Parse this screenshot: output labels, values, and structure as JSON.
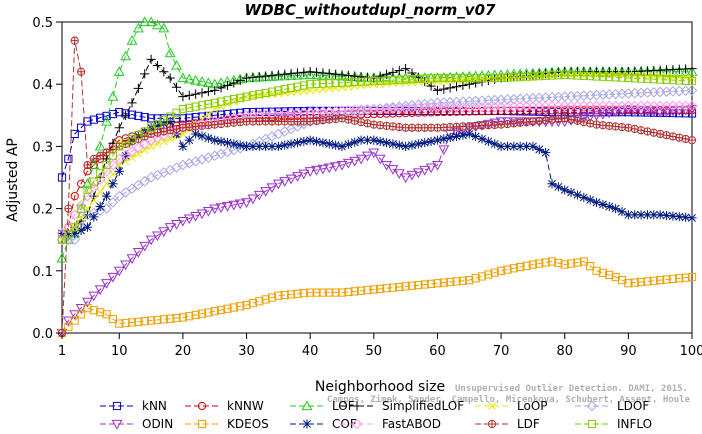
{
  "chart_data": {
    "type": "line",
    "title": "WDBC_withoutdupl_norm_v07",
    "xlabel": "Neighborhood size",
    "ylabel": "Adjusted AP",
    "xlim": [
      1,
      100
    ],
    "ylim": [
      0,
      0.5
    ],
    "xticks": [
      1,
      10,
      20,
      30,
      40,
      50,
      60,
      70,
      80,
      90,
      100
    ],
    "yticks": [
      0.0,
      0.1,
      0.2,
      0.3,
      0.4,
      0.5
    ],
    "grid": false,
    "legend_position": "bottom",
    "watermark": "Campos, Zimek, Sander, Campello, Micenkova, Schubert, Assent, Houle",
    "watermark_line1": "Unsupervised Outlier Detection. DAMI, 2015.",
    "x_sample": [
      1,
      2,
      3,
      4,
      5,
      7,
      10,
      12,
      15,
      17,
      20,
      25,
      30,
      35,
      40,
      45,
      50,
      55,
      60,
      65,
      70,
      75,
      78,
      80,
      85,
      90,
      95,
      100
    ],
    "series": [
      {
        "name": "kNN",
        "color": "#0000cc",
        "marker": "square",
        "dash": "6,3",
        "x": [
          1,
          2,
          3,
          5,
          10,
          15,
          20,
          30,
          40,
          50,
          60,
          70,
          80,
          90,
          100
        ],
        "values": [
          0.25,
          0.28,
          0.32,
          0.34,
          0.355,
          0.345,
          0.345,
          0.355,
          0.357,
          0.357,
          0.357,
          0.357,
          0.355,
          0.355,
          0.353
        ]
      },
      {
        "name": "kNNW",
        "color": "#dd0000",
        "marker": "circle",
        "dash": "6,3",
        "x": [
          1,
          2,
          3,
          5,
          8,
          10,
          15,
          20,
          30,
          40,
          50,
          60,
          70,
          80,
          90,
          100
        ],
        "values": [
          0.16,
          0.17,
          0.22,
          0.26,
          0.29,
          0.31,
          0.325,
          0.335,
          0.345,
          0.35,
          0.352,
          0.355,
          0.357,
          0.358,
          0.358,
          0.358
        ]
      },
      {
        "name": "LOF",
        "color": "#22cc22",
        "marker": "triangle",
        "dash": "6,3",
        "x": [
          1,
          2,
          3,
          5,
          7,
          10,
          12,
          13,
          14,
          15,
          17,
          18,
          20,
          25,
          30,
          40,
          50,
          60,
          70,
          80,
          90,
          100
        ],
        "values": [
          0.12,
          0.15,
          0.16,
          0.24,
          0.3,
          0.42,
          0.47,
          0.49,
          0.5,
          0.5,
          0.49,
          0.45,
          0.41,
          0.4,
          0.41,
          0.415,
          0.41,
          0.41,
          0.415,
          0.42,
          0.42,
          0.42
        ]
      },
      {
        "name": "SimplifiedLOF",
        "color": "#000000",
        "marker": "plus",
        "dash": "6,3",
        "x": [
          1,
          2,
          3,
          5,
          8,
          10,
          12,
          15,
          18,
          20,
          25,
          30,
          40,
          50,
          55,
          60,
          65,
          70,
          80,
          90,
          100
        ],
        "values": [
          0.16,
          0.16,
          0.17,
          0.19,
          0.28,
          0.33,
          0.37,
          0.44,
          0.41,
          0.38,
          0.39,
          0.41,
          0.42,
          0.41,
          0.425,
          0.39,
          0.4,
          0.41,
          0.42,
          0.42,
          0.425
        ]
      },
      {
        "name": "LoOP",
        "color": "#e8e800",
        "marker": "x",
        "dash": "6,3",
        "x": [
          1,
          2,
          3,
          5,
          8,
          10,
          15,
          20,
          25,
          30,
          40,
          50,
          60,
          70,
          80,
          90,
          100
        ],
        "values": [
          0.15,
          0.16,
          0.17,
          0.2,
          0.24,
          0.27,
          0.3,
          0.32,
          0.36,
          0.38,
          0.39,
          0.4,
          0.405,
          0.41,
          0.415,
          0.415,
          0.41
        ]
      },
      {
        "name": "LDOF",
        "color": "#a8a8e8",
        "marker": "diamond",
        "dash": "6,3",
        "x": [
          1,
          2,
          3,
          5,
          8,
          10,
          15,
          20,
          30,
          40,
          50,
          60,
          70,
          80,
          90,
          100
        ],
        "values": [
          0.15,
          0.15,
          0.15,
          0.19,
          0.2,
          0.22,
          0.25,
          0.27,
          0.3,
          0.34,
          0.36,
          0.37,
          0.375,
          0.38,
          0.385,
          0.39
        ]
      },
      {
        "name": "ODIN",
        "color": "#9933cc",
        "marker": "invtriangle",
        "dash": "6,3",
        "x": [
          1,
          2,
          3,
          5,
          7,
          10,
          13,
          15,
          18,
          20,
          25,
          30,
          35,
          40,
          45,
          48,
          50,
          52,
          55,
          60,
          62,
          65,
          70,
          75,
          80,
          85,
          90,
          95,
          100
        ],
        "values": [
          0.0,
          0.02,
          0.03,
          0.05,
          0.07,
          0.1,
          0.13,
          0.15,
          0.17,
          0.18,
          0.2,
          0.21,
          0.24,
          0.26,
          0.27,
          0.28,
          0.29,
          0.27,
          0.25,
          0.27,
          0.32,
          0.33,
          0.34,
          0.34,
          0.34,
          0.35,
          0.36,
          0.355,
          0.36
        ]
      },
      {
        "name": "KDEOS",
        "color": "#f0a000",
        "marker": "square",
        "dash": "6,3",
        "x": [
          1,
          3,
          5,
          8,
          10,
          15,
          20,
          25,
          30,
          35,
          40,
          45,
          50,
          55,
          60,
          65,
          70,
          75,
          78,
          80,
          83,
          85,
          88,
          90,
          95,
          100
        ],
        "values": [
          0.0,
          0.02,
          0.04,
          0.03,
          0.015,
          0.02,
          0.025,
          0.035,
          0.045,
          0.06,
          0.065,
          0.065,
          0.07,
          0.075,
          0.08,
          0.085,
          0.1,
          0.11,
          0.115,
          0.11,
          0.115,
          0.1,
          0.09,
          0.08,
          0.085,
          0.09
        ]
      },
      {
        "name": "COF",
        "color": "#001a80",
        "marker": "star",
        "dash": "6,3",
        "x": [
          1,
          2,
          3,
          5,
          8,
          10,
          12,
          15,
          18,
          20,
          22,
          25,
          30,
          35,
          40,
          45,
          48,
          50,
          55,
          60,
          65,
          70,
          75,
          77,
          78,
          80,
          85,
          88,
          90,
          95,
          100
        ],
        "values": [
          0.16,
          0.16,
          0.16,
          0.17,
          0.22,
          0.26,
          0.31,
          0.33,
          0.34,
          0.3,
          0.32,
          0.31,
          0.3,
          0.3,
          0.31,
          0.3,
          0.31,
          0.31,
          0.3,
          0.31,
          0.32,
          0.3,
          0.3,
          0.29,
          0.24,
          0.23,
          0.21,
          0.2,
          0.19,
          0.19,
          0.185
        ]
      },
      {
        "name": "FastABOD",
        "color": "#ff99ee",
        "marker": "diamond",
        "dash": "6,3",
        "x": [
          1,
          2,
          3,
          5,
          8,
          10,
          15,
          20,
          30,
          40,
          50,
          60,
          70,
          80,
          90,
          100
        ],
        "values": [
          0.16,
          0.17,
          0.19,
          0.22,
          0.26,
          0.28,
          0.31,
          0.33,
          0.35,
          0.355,
          0.36,
          0.362,
          0.363,
          0.365,
          0.365,
          0.365
        ]
      },
      {
        "name": "LDF",
        "color": "#b03030",
        "marker": "circleplus",
        "dash": "6,3",
        "x": [
          1,
          2,
          3,
          4,
          5,
          6,
          8,
          10,
          15,
          20,
          30,
          40,
          45,
          50,
          55,
          60,
          70,
          75,
          80,
          85,
          90,
          95,
          100
        ],
        "values": [
          0.0,
          0.2,
          0.47,
          0.42,
          0.27,
          0.28,
          0.29,
          0.3,
          0.32,
          0.33,
          0.34,
          0.34,
          0.345,
          0.335,
          0.33,
          0.33,
          0.335,
          0.34,
          0.345,
          0.335,
          0.33,
          0.32,
          0.31
        ]
      },
      {
        "name": "INFLO",
        "color": "#88cc00",
        "marker": "square",
        "dash": "6,3",
        "x": [
          1,
          2,
          3,
          5,
          8,
          10,
          15,
          20,
          30,
          40,
          50,
          60,
          70,
          80,
          90,
          100
        ],
        "values": [
          0.15,
          0.16,
          0.17,
          0.23,
          0.27,
          0.3,
          0.33,
          0.36,
          0.38,
          0.4,
          0.405,
          0.41,
          0.41,
          0.415,
          0.41,
          0.405
        ]
      }
    ]
  }
}
